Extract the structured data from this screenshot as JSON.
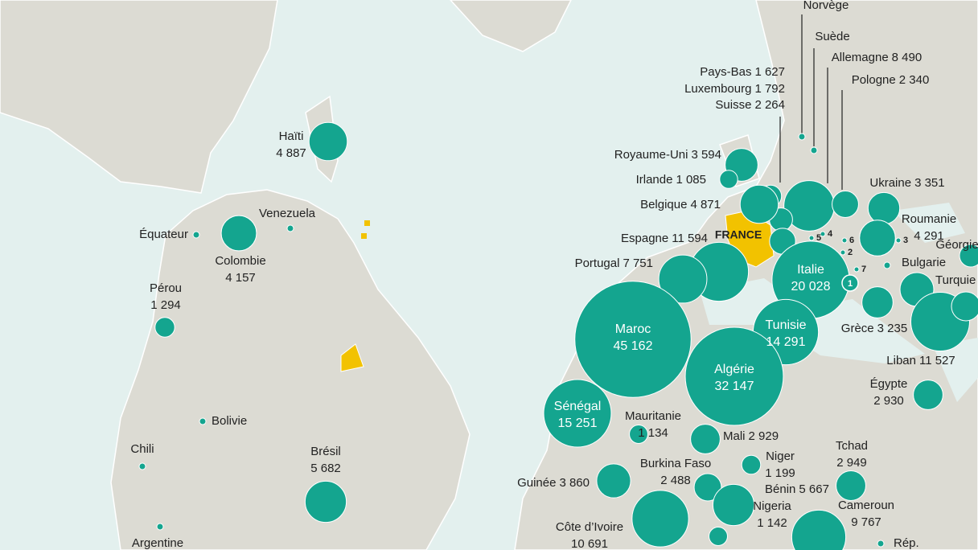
{
  "points": [
    {
      "name": "Haïti",
      "value": 4887,
      "value_label": "4 887"
    },
    {
      "name": "Venezuela"
    },
    {
      "name": "Équateur"
    },
    {
      "name": "Colombie",
      "value": 4157,
      "value_label": "4 157"
    },
    {
      "name": "Pérou",
      "value": 1294,
      "value_label": "1 294"
    },
    {
      "name": "Bolivie"
    },
    {
      "name": "Chili"
    },
    {
      "name": "Brésil",
      "value": 5682,
      "value_label": "5 682"
    },
    {
      "name": "Argentine"
    },
    {
      "name": "Norvège"
    },
    {
      "name": "Suède"
    },
    {
      "name": "Allemagne",
      "value": 8490,
      "value_label": "8 490"
    },
    {
      "name": "Pologne",
      "value": 2340,
      "value_label": "2 340"
    },
    {
      "name": "Pays-Bas",
      "value": 1627,
      "value_label": "1 627"
    },
    {
      "name": "Luxembourg",
      "value": 1792,
      "value_label": "1 792"
    },
    {
      "name": "Suisse",
      "value": 2264,
      "value_label": "2 264"
    },
    {
      "name": "Royaume-Uni",
      "value": 3594,
      "value_label": "3 594"
    },
    {
      "name": "Irlande",
      "value": 1085,
      "value_label": "1 085"
    },
    {
      "name": "Belgique",
      "value": 4871,
      "value_label": "4 871"
    },
    {
      "name": "Espagne",
      "value": 11594,
      "value_label": "11 594"
    },
    {
      "name": "Portugal",
      "value": 7751,
      "value_label": "7 751"
    },
    {
      "name": "Italie",
      "value": 20028,
      "value_label": "20 028"
    },
    {
      "name": "Tunisie",
      "value": 14291,
      "value_label": "14 291"
    },
    {
      "name": "Maroc",
      "value": 45162,
      "value_label": "45 162"
    },
    {
      "name": "Algérie",
      "value": 32147,
      "value_label": "32 147"
    },
    {
      "name": "Sénégal",
      "value": 15251,
      "value_label": "15 251"
    },
    {
      "name": "Mauritanie",
      "value": 1134,
      "value_label": "1 134"
    },
    {
      "name": "Mali",
      "value": 2929,
      "value_label": "2 929"
    },
    {
      "name": "Ukraine",
      "value": 3351,
      "value_label": "3 351"
    },
    {
      "name": "Roumanie",
      "value": 4291,
      "value_label": "4 291"
    },
    {
      "name": "Géorgie"
    },
    {
      "name": "Bulgarie"
    },
    {
      "name": "Turquie"
    },
    {
      "name": "Grèce",
      "value": 3235,
      "value_label": "3 235"
    },
    {
      "name": "Liban",
      "value": 11527,
      "value_label": "11 527"
    },
    {
      "name": "Égypte",
      "value": 2930,
      "value_label": "2 930"
    },
    {
      "name": "Tchad",
      "value": 2949,
      "value_label": "2 949"
    },
    {
      "name": "Niger",
      "value": 1199,
      "value_label": "1 199"
    },
    {
      "name": "Burkina Faso",
      "value": 2488,
      "value_label": "2 488"
    },
    {
      "name": "Guinée",
      "value": 3860,
      "value_label": "3 860"
    },
    {
      "name": "Bénin",
      "value": 5667,
      "value_label": "5 667"
    },
    {
      "name": "Nigeria",
      "value": 1142,
      "value_label": "1 142"
    },
    {
      "name": "Cameroun",
      "value": 9767,
      "value_label": "9 767"
    },
    {
      "name": "Côte d’Ivoire",
      "value": 10691,
      "value_label": "10 691"
    },
    {
      "name": "Rép."
    }
  ],
  "france": "FRANCE",
  "markers": [
    "1",
    "2",
    "3",
    "4",
    "5",
    "6",
    "7"
  ]
}
